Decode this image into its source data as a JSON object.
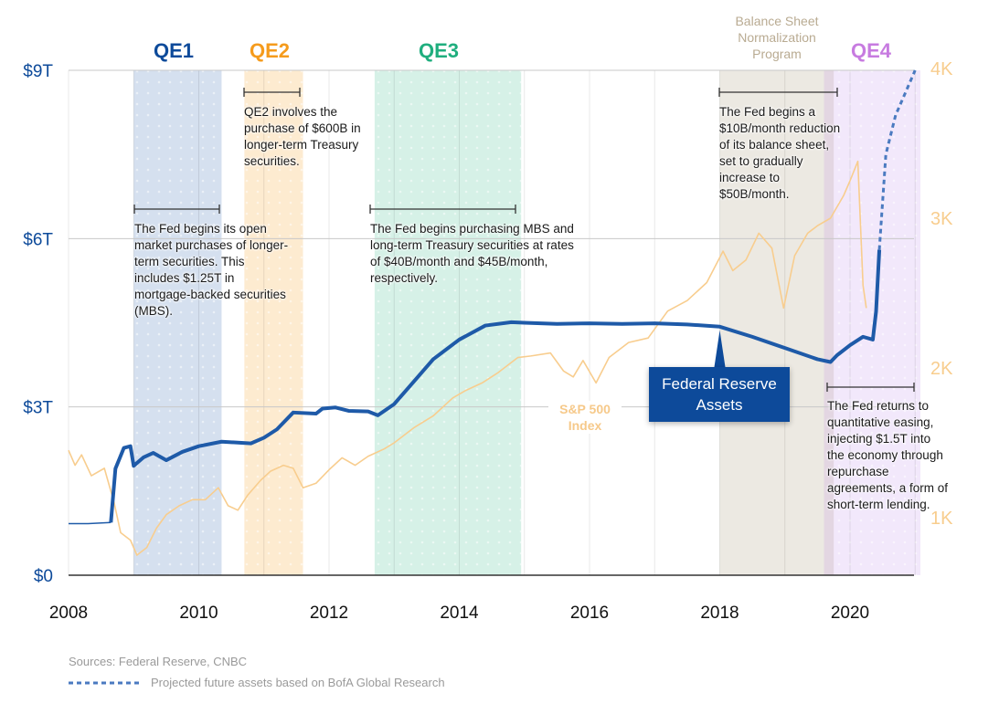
{
  "chart_data": {
    "type": "line",
    "title": "",
    "x_axis": {
      "min": 2008,
      "max": 2021,
      "ticks": [
        "2008",
        "2010",
        "2012",
        "2014",
        "2016",
        "2018",
        "2020"
      ]
    },
    "y_left": {
      "label": "Federal Reserve Assets",
      "min": 0,
      "max": 9,
      "unit": "T",
      "ticks": [
        "$0",
        "$3T",
        "$6T",
        "$9T"
      ],
      "tick_values": [
        0,
        3,
        6,
        9
      ]
    },
    "y_right": {
      "label": "S&P 500 Index",
      "min": 0,
      "max": 4000,
      "ticks": [
        "1K",
        "2K",
        "3K",
        "4K"
      ],
      "tick_values": [
        1000,
        2000,
        3000,
        4000
      ]
    },
    "grid": true,
    "periods": [
      {
        "name": "QE1",
        "start": 2009.0,
        "end": 2010.35,
        "color": "#0d4a9a",
        "fill": "#d5e0ef"
      },
      {
        "name": "QE2",
        "start": 2010.7,
        "end": 2011.6,
        "color": "#f59b1c",
        "fill": "#fdebd0"
      },
      {
        "name": "QE3",
        "start": 2012.7,
        "end": 2014.95,
        "color": "#1fae7e",
        "fill": "#d6f1e7"
      },
      {
        "name": "Balance Sheet Normalization Program",
        "start": 2018.0,
        "end": 2019.75,
        "color": "#b9ab92",
        "fill": "#ece9e2"
      },
      {
        "name": "QE4",
        "start": 2019.6,
        "end": 2021.1,
        "color": "#c77be0",
        "fill": "#f2e8fb"
      }
    ],
    "series": [
      {
        "name": "Federal Reserve Assets",
        "color": "#1e5aa8",
        "x": [
          2008.0,
          2008.3,
          2008.65,
          2008.72,
          2008.85,
          2008.95,
          2009.0,
          2009.15,
          2009.3,
          2009.5,
          2009.75,
          2010.0,
          2010.35,
          2010.8,
          2011.0,
          2011.2,
          2011.45,
          2011.8,
          2011.9,
          2012.1,
          2012.3,
          2012.6,
          2012.75,
          2013.0,
          2013.3,
          2013.6,
          2014.0,
          2014.4,
          2014.8,
          2015.0,
          2015.5,
          2016.0,
          2016.5,
          2017.0,
          2017.5,
          2018.0,
          2018.5,
          2019.0,
          2019.5,
          2019.7,
          2019.8,
          2020.0,
          2020.2,
          2020.35,
          2020.4,
          2020.45
        ],
        "values": [
          0.92,
          0.92,
          0.94,
          1.9,
          2.27,
          2.3,
          1.95,
          2.1,
          2.18,
          2.05,
          2.2,
          2.3,
          2.38,
          2.35,
          2.45,
          2.6,
          2.9,
          2.88,
          2.97,
          2.99,
          2.93,
          2.92,
          2.85,
          3.05,
          3.45,
          3.85,
          4.2,
          4.45,
          4.51,
          4.5,
          4.48,
          4.49,
          4.48,
          4.49,
          4.47,
          4.43,
          4.25,
          4.05,
          3.85,
          3.8,
          3.92,
          4.1,
          4.25,
          4.2,
          4.7,
          5.8
        ]
      },
      {
        "name": "Projected future assets",
        "style": "dashed",
        "color": "#4a7ac0",
        "x": [
          2020.45,
          2020.55,
          2020.7,
          2021.0
        ],
        "values": [
          5.8,
          7.5,
          8.2,
          9.0
        ]
      },
      {
        "name": "S&P 500 Index",
        "axis": "right",
        "color": "#f8cd8e",
        "x": [
          2008.0,
          2008.1,
          2008.2,
          2008.35,
          2008.55,
          2008.7,
          2008.8,
          2008.95,
          2009.05,
          2009.2,
          2009.35,
          2009.5,
          2009.7,
          2009.9,
          2010.1,
          2010.3,
          2010.45,
          2010.6,
          2010.75,
          2010.95,
          2011.1,
          2011.3,
          2011.45,
          2011.6,
          2011.8,
          2012.0,
          2012.2,
          2012.4,
          2012.6,
          2012.85,
          2013.0,
          2013.3,
          2013.6,
          2013.9,
          2014.1,
          2014.35,
          2014.6,
          2014.9,
          2015.1,
          2015.4,
          2015.6,
          2015.75,
          2015.9,
          2016.1,
          2016.3,
          2016.6,
          2016.9,
          2017.2,
          2017.5,
          2017.8,
          2018.05,
          2018.2,
          2018.4,
          2018.6,
          2018.8,
          2018.98,
          2019.15,
          2019.35,
          2019.5,
          2019.7,
          2019.9,
          2020.0,
          2020.12,
          2020.2,
          2020.25
        ],
        "values": [
          1450,
          1350,
          1420,
          1280,
          1330,
          1100,
          900,
          850,
          750,
          800,
          930,
          1020,
          1080,
          1120,
          1120,
          1200,
          1080,
          1050,
          1150,
          1250,
          1310,
          1350,
          1330,
          1200,
          1230,
          1320,
          1400,
          1350,
          1410,
          1460,
          1500,
          1600,
          1680,
          1800,
          1850,
          1900,
          1970,
          2070,
          2080,
          2100,
          1980,
          1940,
          2050,
          1900,
          2070,
          2170,
          2200,
          2380,
          2450,
          2570,
          2780,
          2650,
          2720,
          2900,
          2800,
          2400,
          2750,
          2900,
          2950,
          3000,
          3150,
          3250,
          3380,
          2550,
          2400
        ]
      }
    ],
    "annotations": [
      {
        "period": "QE1",
        "text": "The Fed begins its open market purchases of longer-term securities. This includes $1.25T in mortgage-backed securities (MBS)."
      },
      {
        "period": "QE2",
        "text": "QE2 involves the purchase of $600B in longer-term Treasury securities."
      },
      {
        "period": "QE3",
        "text": "The Fed begins purchasing MBS and long-term Treasury securities at rates of $40B/month and $45B/month, respectively."
      },
      {
        "period": "Balance Sheet Normalization Program",
        "text": "The Fed begins a $10B/month reduction of its balance sheet, set to gradually increase to $50B/month."
      },
      {
        "period": "QE4",
        "text": "The Fed returns to quantitative easing, injecting $1.5T into the economy through repurchase agreements, a form of short-term lending."
      }
    ],
    "callouts": [
      {
        "text": "Federal Reserve Assets",
        "points_to": 2018.0
      },
      {
        "text": "S&P 500 Index"
      }
    ]
  },
  "labels": {
    "qe1": "QE1",
    "qe2": "QE2",
    "qe3": "QE3",
    "qe4": "QE4",
    "bsnp_1": "Balance Sheet",
    "bsnp_2": "Normalization",
    "bsnp_3": "Program",
    "callout_fed": "Federal Reserve Assets",
    "sp_1": "S&P 500",
    "sp_2": "Index"
  },
  "footer": {
    "sources": "Sources: Federal Reserve, CNBC",
    "legend_projected": "Projected future assets based on BofA Global Research"
  }
}
